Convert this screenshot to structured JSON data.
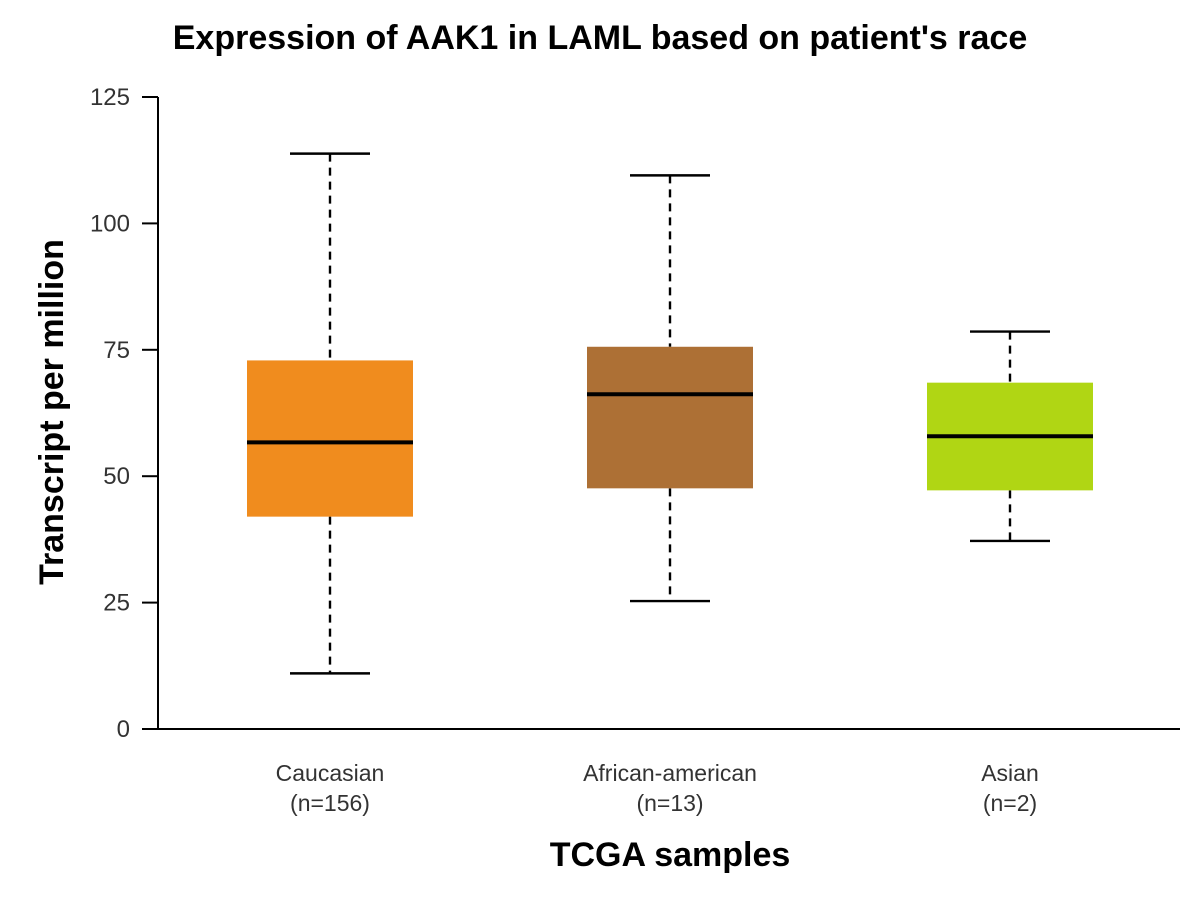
{
  "chart_data": {
    "type": "box",
    "title": "Expression of AAK1 in LAML based on patient's race",
    "xlabel": "TCGA samples",
    "ylabel": "Transcript per million",
    "ylim": [
      0,
      125
    ],
    "yticks": [
      0,
      25,
      50,
      75,
      100,
      125
    ],
    "grid": false,
    "legend": "none",
    "groups": [
      {
        "label": "Caucasian",
        "n_label": "(n=156)",
        "color": "#f08c1e",
        "whisker_low": 11,
        "q1": 42,
        "median": 56.7,
        "q3": 72.9,
        "whisker_high": 113.8
      },
      {
        "label": "African-american",
        "n_label": "(n=13)",
        "color": "#ad7035",
        "whisker_low": 25.3,
        "q1": 47.6,
        "median": 66.2,
        "q3": 75.6,
        "whisker_high": 109.5
      },
      {
        "label": "Asian",
        "n_label": "(n=2)",
        "color": "#b0d614",
        "whisker_low": 37.2,
        "q1": 47.2,
        "median": 57.9,
        "q3": 68.5,
        "whisker_high": 78.6
      }
    ]
  }
}
